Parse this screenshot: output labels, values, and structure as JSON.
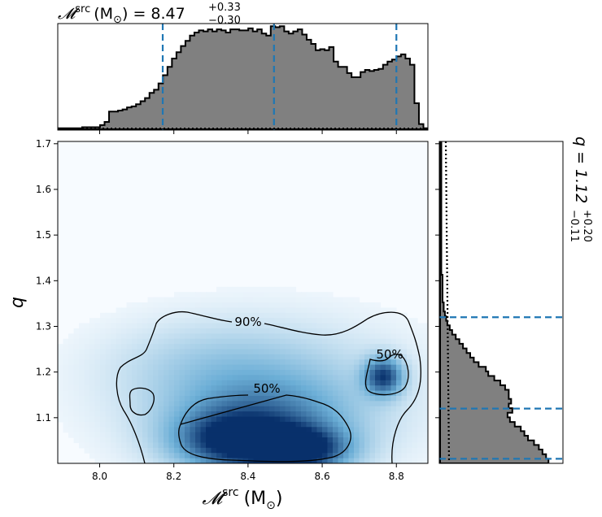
{
  "chart_data": {
    "type": "corner",
    "title_top": {
      "symbol": "𝓜",
      "sup": "src",
      "unit": "(M",
      "unit_sub": "⊙",
      "unit_close": ")",
      "eq": " = 8.47",
      "plus": "+0.33",
      "minus": "−0.30"
    },
    "title_side": {
      "text": "q = 1.12",
      "plus": "+0.20",
      "minus": "−0.11"
    },
    "xlabel": {
      "symbol": "𝓜",
      "sup": "src",
      "unit": "(M",
      "unit_sub": "⊙",
      "unit_close": ")"
    },
    "ylabel": "q",
    "xlim": [
      7.887,
      8.885
    ],
    "ylim": [
      1.0,
      1.705
    ],
    "xticks": [
      "8.0",
      "8.2",
      "8.4",
      "8.6",
      "8.8"
    ],
    "yticks": [
      "1.1",
      "1.2",
      "1.3",
      "1.4",
      "1.5",
      "1.6",
      "1.7"
    ],
    "x_quantiles": [
      8.17,
      8.47,
      8.8
    ],
    "q_quantiles": [
      1.01,
      1.12,
      1.32
    ],
    "contour_labels": [
      "90%",
      "50%",
      "50%"
    ],
    "hist_x": {
      "edges": [
        7.88,
        8.885
      ],
      "values": [
        1,
        1,
        1,
        1,
        1,
        1,
        2,
        2,
        2,
        2,
        4,
        7,
        17,
        17,
        18,
        19,
        21,
        22,
        24,
        27,
        30,
        35,
        38,
        44,
        52,
        60,
        68,
        74,
        80,
        85,
        90,
        93,
        95,
        94,
        96,
        94,
        96,
        95,
        93,
        96,
        96,
        95,
        95,
        97,
        94,
        96,
        92,
        90,
        99,
        98,
        99,
        94,
        92,
        94,
        96,
        91,
        86,
        82,
        76,
        77,
        76,
        79,
        65,
        60,
        60,
        54,
        50,
        50,
        55,
        57,
        56,
        57,
        58,
        62,
        65,
        67,
        70,
        72,
        68,
        62,
        25,
        5,
        1
      ]
    },
    "hist_q": {
      "range": [
        1.0,
        1.705
      ],
      "values": [
        90,
        88,
        85,
        82,
        78,
        73,
        70,
        67,
        62,
        58,
        56,
        60,
        57,
        59,
        57,
        57,
        54,
        50,
        45,
        40,
        38,
        32,
        28,
        25,
        22,
        19,
        16,
        13,
        10,
        8,
        6,
        5,
        4,
        3,
        3,
        2,
        2,
        2,
        2,
        2,
        2,
        1,
        1,
        1,
        1,
        1,
        1,
        1,
        1,
        1,
        1,
        1,
        1,
        1,
        1,
        1,
        1,
        1,
        1,
        1,
        1,
        1,
        1,
        1,
        1,
        1,
        1,
        1,
        1,
        1
      ]
    },
    "density_blobs": [
      {
        "x": 8.535,
        "y": 1.03,
        "sx": 0.085,
        "sy": 0.032,
        "w": 1.0
      },
      {
        "x": 8.36,
        "y": 1.05,
        "sx": 0.1,
        "sy": 0.04,
        "w": 0.75
      },
      {
        "x": 8.44,
        "y": 1.08,
        "sx": 0.16,
        "sy": 0.07,
        "w": 0.55
      },
      {
        "x": 8.765,
        "y": 1.19,
        "sx": 0.035,
        "sy": 0.028,
        "w": 0.85
      },
      {
        "x": 8.45,
        "y": 1.16,
        "sx": 0.26,
        "sy": 0.1,
        "w": 0.22
      },
      {
        "x": 8.3,
        "y": 1.22,
        "sx": 0.18,
        "sy": 0.06,
        "w": 0.12
      }
    ],
    "colors": {
      "hist_fill": "#808080",
      "quantile": "#1f77b4",
      "contour": "#000000",
      "cmap_low": "#f7fbff",
      "cmap_high": "#08306b"
    }
  }
}
